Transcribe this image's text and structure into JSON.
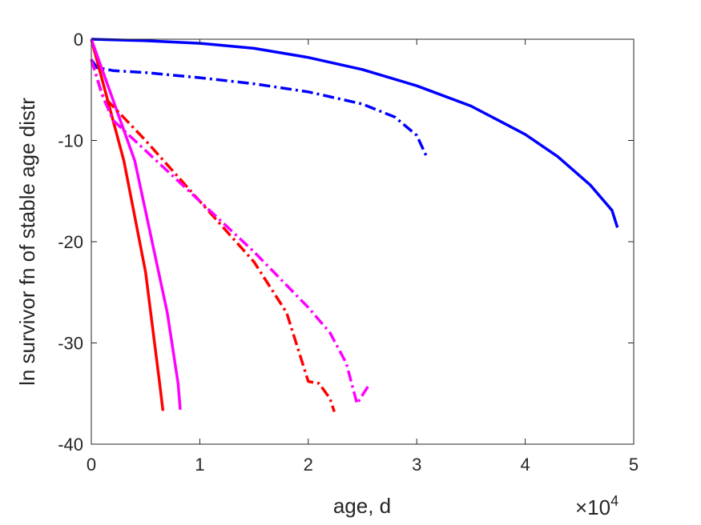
{
  "chart_data": {
    "type": "line",
    "title": "",
    "xlabel": "age, d",
    "ylabel": "ln survivor fn of stable age distr",
    "x_exponent_label": "×10",
    "x_exponent_power": "4",
    "xlim": [
      0,
      5
    ],
    "ylim": [
      -40,
      0
    ],
    "x_ticks": [
      0,
      1,
      2,
      3,
      4,
      5
    ],
    "x_tick_labels": [
      "0",
      "1",
      "2",
      "3",
      "4",
      "5"
    ],
    "y_ticks": [
      0,
      -10,
      -20,
      -30,
      -40
    ],
    "y_tick_labels": [
      "0",
      "-10",
      "-20",
      "-30",
      "-40"
    ],
    "x_scale_note": "x values in units of 10^4 d",
    "grid": false,
    "legend": "none",
    "series": [
      {
        "color": "#0000ff",
        "dash": "solid",
        "points": [
          [
            0,
            0
          ],
          [
            0.5,
            -0.15
          ],
          [
            1.0,
            -0.4
          ],
          [
            1.5,
            -0.9
          ],
          [
            2.0,
            -1.8
          ],
          [
            2.5,
            -3.0
          ],
          [
            3.0,
            -4.6
          ],
          [
            3.5,
            -6.6
          ],
          [
            4.0,
            -9.4
          ],
          [
            4.3,
            -11.6
          ],
          [
            4.6,
            -14.4
          ],
          [
            4.8,
            -16.9
          ],
          [
            4.85,
            -18.6
          ]
        ]
      },
      {
        "color": "#0000ff",
        "dash": "dashdot",
        "points": [
          [
            0,
            -2.0
          ],
          [
            0.05,
            -2.8
          ],
          [
            0.2,
            -3.1
          ],
          [
            0.5,
            -3.3
          ],
          [
            1.0,
            -3.8
          ],
          [
            1.5,
            -4.4
          ],
          [
            2.0,
            -5.2
          ],
          [
            2.5,
            -6.4
          ],
          [
            2.8,
            -7.7
          ],
          [
            3.0,
            -9.5
          ],
          [
            3.1,
            -11.8
          ]
        ]
      },
      {
        "color": "#ff0000",
        "dash": "solid",
        "points": [
          [
            0,
            0
          ],
          [
            0.3,
            -12
          ],
          [
            0.5,
            -23
          ],
          [
            0.63,
            -34
          ],
          [
            0.66,
            -36.7
          ]
        ]
      },
      {
        "color": "#ff00ff",
        "dash": "solid",
        "points": [
          [
            0,
            0
          ],
          [
            0.4,
            -12
          ],
          [
            0.7,
            -27
          ],
          [
            0.8,
            -34
          ],
          [
            0.82,
            -36.6
          ]
        ]
      },
      {
        "color": "#ff0000",
        "dash": "dashdot",
        "points": [
          [
            0,
            -2
          ],
          [
            0.1,
            -5.5
          ],
          [
            0.5,
            -10
          ],
          [
            1.0,
            -16
          ],
          [
            1.5,
            -22
          ],
          [
            1.8,
            -27
          ],
          [
            2.0,
            -33.8
          ],
          [
            2.1,
            -34.0
          ],
          [
            2.2,
            -35.5
          ],
          [
            2.24,
            -36.8
          ]
        ]
      },
      {
        "color": "#ff00ff",
        "dash": "dashdot",
        "points": [
          [
            0,
            -2
          ],
          [
            0.1,
            -5.5
          ],
          [
            0.2,
            -8
          ],
          [
            0.5,
            -11
          ],
          [
            1.0,
            -16
          ],
          [
            1.5,
            -21
          ],
          [
            2.0,
            -26.5
          ],
          [
            2.2,
            -29
          ],
          [
            2.35,
            -32
          ],
          [
            2.45,
            -36.0
          ],
          [
            2.55,
            -34.3
          ]
        ]
      }
    ]
  }
}
